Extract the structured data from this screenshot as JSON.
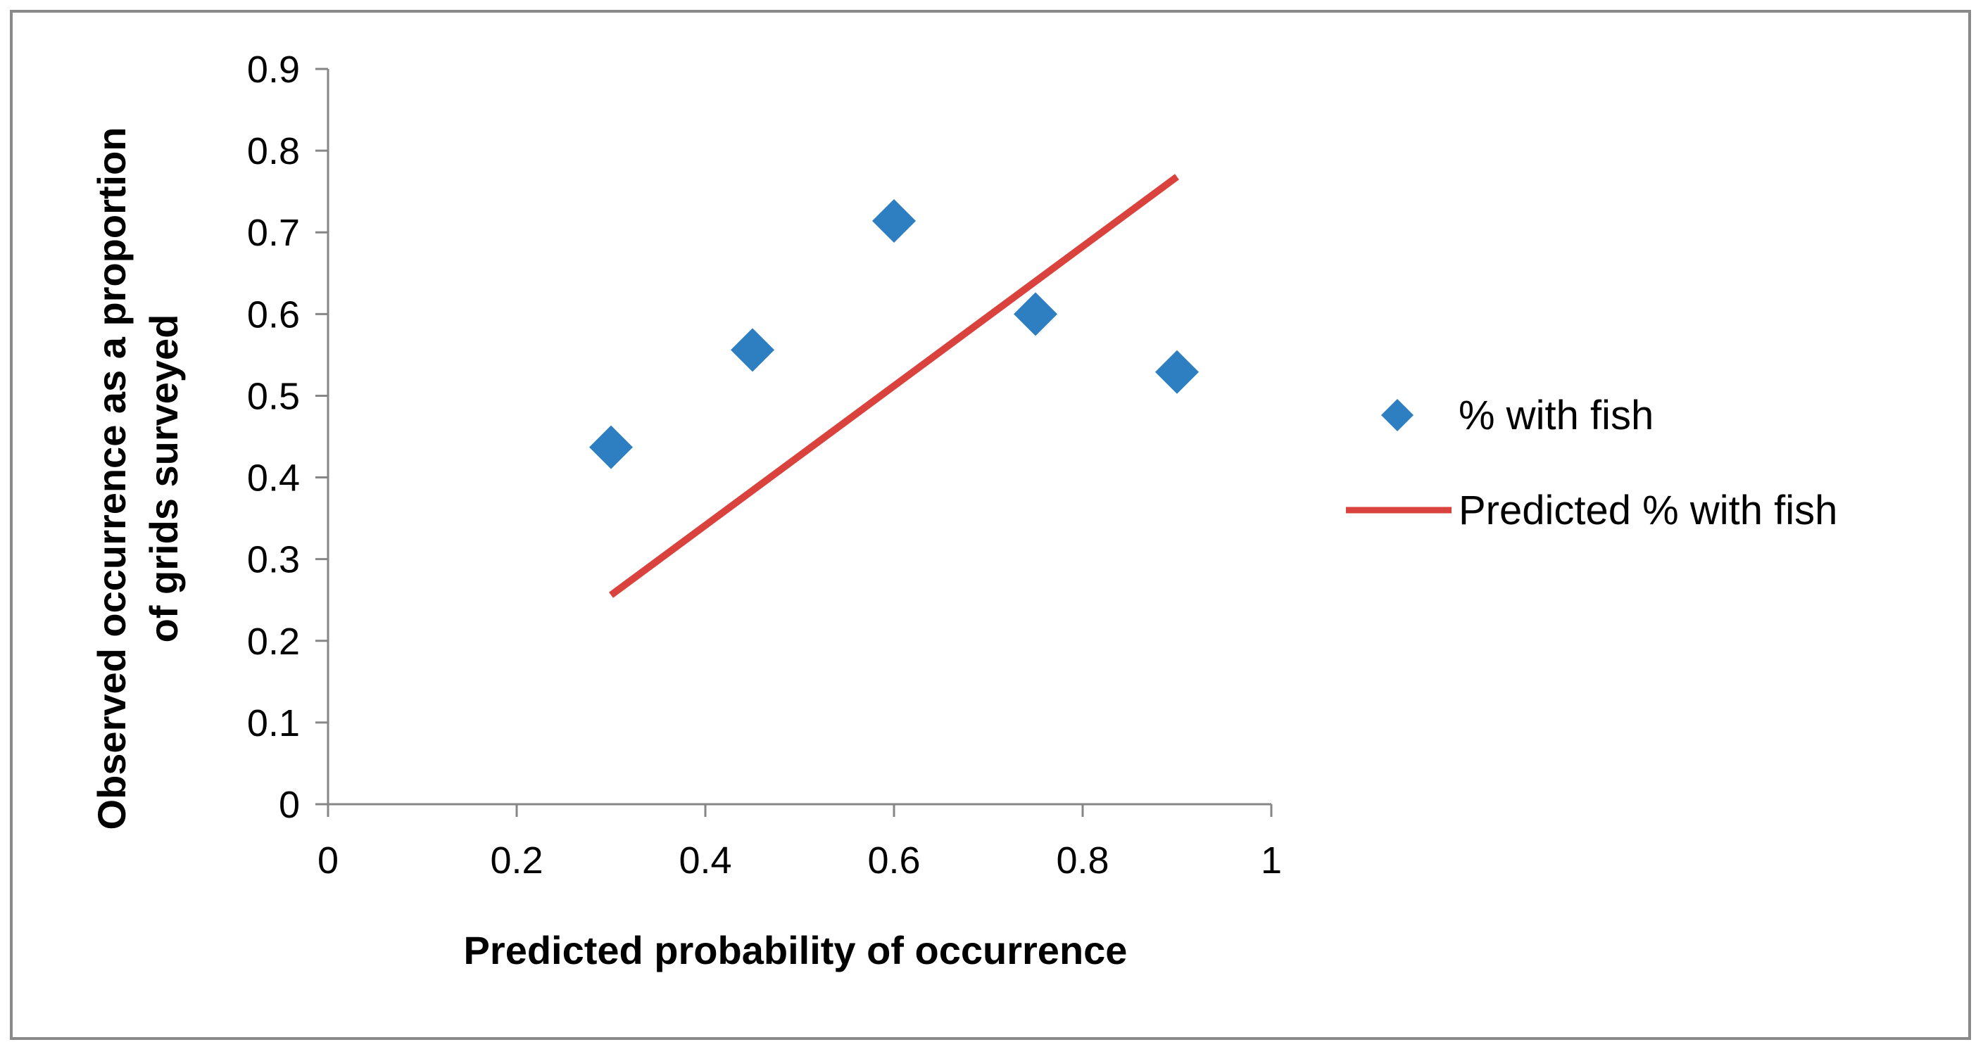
{
  "chart_data": {
    "type": "scatter",
    "title": "",
    "xlabel": "Predicted probability of occurrence",
    "ylabel_lines": [
      "Observed occurrence as a proportion",
      "of grids surveyed"
    ],
    "xlim": [
      0,
      1
    ],
    "ylim": [
      0,
      0.9
    ],
    "x_ticks": [
      0,
      0.2,
      0.4,
      0.6,
      0.8,
      1
    ],
    "x_tick_labels": [
      "0",
      "0.2",
      "0.4",
      "0.6",
      "0.8",
      "1"
    ],
    "y_ticks": [
      0,
      0.1,
      0.2,
      0.3,
      0.4,
      0.5,
      0.6,
      0.7,
      0.8,
      0.9
    ],
    "y_tick_labels": [
      "0",
      "0.1",
      "0.2",
      "0.3",
      "0.4",
      "0.5",
      "0.6",
      "0.7",
      "0.8",
      "0.9"
    ],
    "grid": false,
    "legend_position": "right",
    "series": [
      {
        "name": "% with fish",
        "kind": "scatter",
        "marker": "diamond",
        "color": "#2e7fc2",
        "x": [
          0.3,
          0.45,
          0.6,
          0.75,
          0.9
        ],
        "y": [
          0.437,
          0.556,
          0.714,
          0.6,
          0.529
        ]
      },
      {
        "name": "Predicted % with fish",
        "kind": "line",
        "color": "#d9423d",
        "x": [
          0.3,
          0.9
        ],
        "y": [
          0.256,
          0.768
        ]
      }
    ]
  }
}
